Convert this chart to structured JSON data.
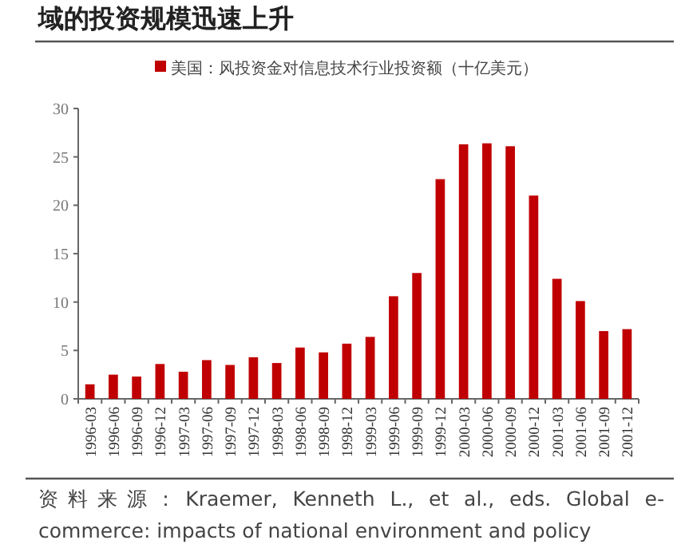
{
  "chart_data": {
    "type": "bar",
    "title": "域的投资规模迅速上升",
    "categories": [
      "1996-03",
      "1996-06",
      "1996-09",
      "1996-12",
      "1997-03",
      "1997-06",
      "1997-09",
      "1997-12",
      "1998-03",
      "1998-06",
      "1998-09",
      "1998-12",
      "1999-03",
      "1999-06",
      "1999-09",
      "1999-12",
      "2000-03",
      "2000-06",
      "2000-09",
      "2000-12",
      "2001-03",
      "2001-06",
      "2001-09",
      "2001-12"
    ],
    "series": [
      {
        "name": "美国：风投资金对信息技术行业投资额（十亿美元）",
        "color": "#c00000",
        "values": [
          1.5,
          2.5,
          2.3,
          3.6,
          2.8,
          4.0,
          3.5,
          4.3,
          3.7,
          5.3,
          4.8,
          5.7,
          6.4,
          10.6,
          13.0,
          22.7,
          26.3,
          26.4,
          26.1,
          21.0,
          12.4,
          10.1,
          7.0,
          7.2
        ]
      }
    ],
    "ylim": [
      0,
      30
    ],
    "yticks": [
      0,
      5,
      10,
      15,
      20,
      25,
      30
    ],
    "legend": "top",
    "annotations": [
      "资料来源：Kraemer, Kenneth L., et al., eds. Global e-commerce: impacts of national environment and policy"
    ]
  }
}
